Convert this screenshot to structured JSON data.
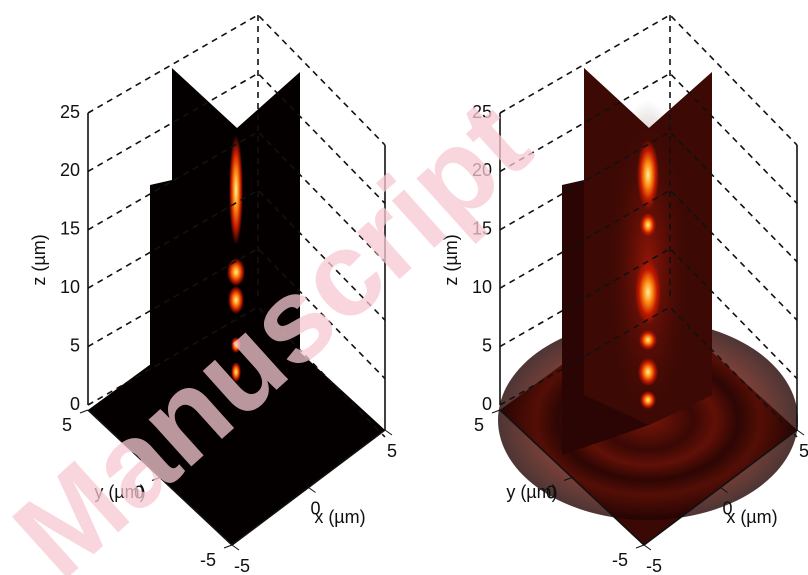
{
  "chart_data": [
    {
      "type": "volume-slices",
      "zlabel": "z (µm)",
      "xlabel": "x (µm)",
      "ylabel": "y (µm)",
      "zlim": [
        0,
        25
      ],
      "zticks": [
        0,
        5,
        10,
        15,
        20,
        25
      ],
      "xlim": [
        -5,
        5
      ],
      "xticks": [
        -5,
        0,
        5
      ],
      "ylim": [
        -5,
        5
      ],
      "yticks": [
        -5,
        0,
        5
      ],
      "floor_color": "#050000"
    },
    {
      "type": "volume-slices",
      "zlabel": "z (µm)",
      "xlabel": "x (µm)",
      "ylabel": "y (µm)",
      "zlim": [
        0,
        25
      ],
      "zticks": [
        0,
        5,
        10,
        15,
        20,
        25
      ],
      "xlim": [
        -5,
        5
      ],
      "xticks": [
        -5,
        0,
        5
      ],
      "ylim": [
        -5,
        5
      ],
      "yticks": [
        -5,
        0,
        5
      ],
      "floor_color": "#3a0805"
    }
  ],
  "watermark": "Manuscript"
}
